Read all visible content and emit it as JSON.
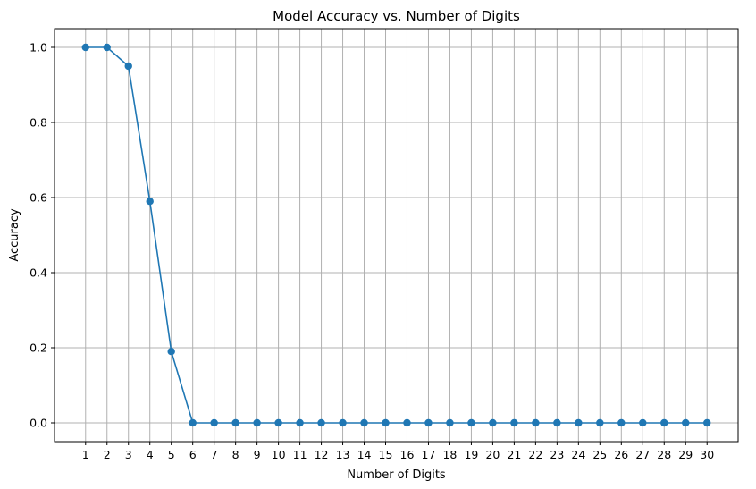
{
  "chart_data": {
    "type": "line",
    "title": "Model Accuracy vs. Number of Digits",
    "xlabel": "Number of Digits",
    "ylabel": "Accuracy",
    "x": [
      1,
      2,
      3,
      4,
      5,
      6,
      7,
      8,
      9,
      10,
      11,
      12,
      13,
      14,
      15,
      16,
      17,
      18,
      19,
      20,
      21,
      22,
      23,
      24,
      25,
      26,
      27,
      28,
      29,
      30
    ],
    "series": [
      {
        "values": [
          1.0,
          1.0,
          0.95,
          0.59,
          0.19,
          0,
          0,
          0,
          0,
          0,
          0,
          0,
          0,
          0,
          0,
          0,
          0,
          0,
          0,
          0,
          0,
          0,
          0,
          0,
          0,
          0,
          0,
          0,
          0,
          0
        ],
        "color": "#1f77b4",
        "marker": "circle"
      }
    ],
    "xticks": [
      1,
      2,
      3,
      4,
      5,
      6,
      7,
      8,
      9,
      10,
      11,
      12,
      13,
      14,
      15,
      16,
      17,
      18,
      19,
      20,
      21,
      22,
      23,
      24,
      25,
      26,
      27,
      28,
      29,
      30
    ],
    "yticks": [
      "0.0",
      "0.2",
      "0.4",
      "0.6",
      "0.8",
      "1.0"
    ],
    "xlim": [
      -0.45,
      31.45
    ],
    "ylim": [
      -0.05,
      1.05
    ],
    "grid": true,
    "legend": "none"
  }
}
